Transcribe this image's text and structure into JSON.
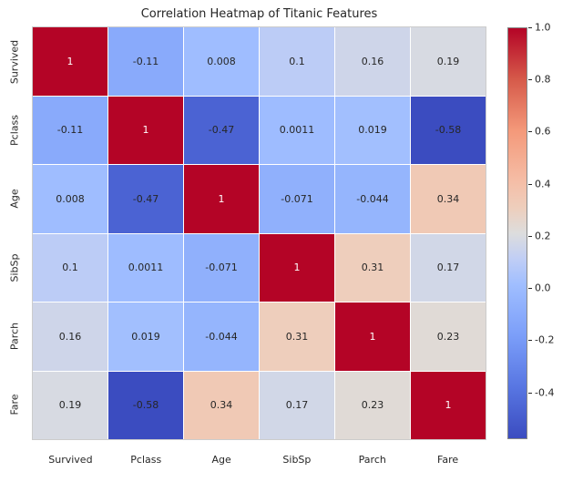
{
  "title": "Correlation Heatmap of Titanic Features",
  "chart_data": {
    "type": "heatmap",
    "title": "Correlation Heatmap of Titanic Features",
    "labels": [
      "Survived",
      "Pclass",
      "Age",
      "SibSp",
      "Parch",
      "Fare"
    ],
    "matrix": [
      [
        1,
        -0.11,
        0.008,
        0.1,
        0.16,
        0.19
      ],
      [
        -0.11,
        1,
        -0.47,
        0.0011,
        0.019,
        -0.58
      ],
      [
        0.008,
        -0.47,
        1,
        -0.071,
        -0.044,
        0.34
      ],
      [
        0.1,
        0.0011,
        -0.071,
        1,
        0.31,
        0.17
      ],
      [
        0.16,
        0.019,
        -0.044,
        0.31,
        1,
        0.23
      ],
      [
        0.19,
        -0.58,
        0.34,
        0.17,
        0.23,
        1
      ]
    ],
    "cell_text": [
      [
        "1",
        "-0.11",
        "0.008",
        "0.1",
        "0.16",
        "0.19"
      ],
      [
        "-0.11",
        "1",
        "-0.47",
        "0.0011",
        "0.019",
        "-0.58"
      ],
      [
        "0.008",
        "-0.47",
        "1",
        "-0.071",
        "-0.044",
        "0.34"
      ],
      [
        "0.1",
        "0.0011",
        "-0.071",
        "1",
        "0.31",
        "0.17"
      ],
      [
        "0.16",
        "0.019",
        "-0.044",
        "0.31",
        "1",
        "0.23"
      ],
      [
        "0.19",
        "-0.58",
        "0.34",
        "0.17",
        "0.23",
        "1"
      ]
    ],
    "colormap": "coolwarm",
    "vmin": -0.58,
    "vmax": 1.0,
    "colormap_stops": [
      [
        0.0,
        59,
        76,
        192
      ],
      [
        0.125,
        88,
        118,
        226
      ],
      [
        0.25,
        123,
        158,
        249
      ],
      [
        0.375,
        160,
        190,
        255
      ],
      [
        0.4375,
        192,
        206,
        245
      ],
      [
        0.5,
        221,
        221,
        221
      ],
      [
        0.5625,
        238,
        206,
        188
      ],
      [
        0.625,
        245,
        190,
        167
      ],
      [
        0.75,
        244,
        153,
        122
      ],
      [
        0.875,
        214,
        90,
        74
      ],
      [
        1.0,
        180,
        4,
        38
      ]
    ],
    "annot_color_dark": "#262626",
    "annot_color_light": "#ffffff",
    "colorbar_ticks": [
      "1.0",
      "0.8",
      "0.6",
      "0.4",
      "0.2",
      "0.0",
      "-0.2",
      "-0.4"
    ],
    "colorbar_tick_values": [
      1.0,
      0.8,
      0.6,
      0.4,
      0.2,
      0.0,
      -0.2,
      -0.4
    ],
    "legend_position": "right",
    "grid": false
  }
}
